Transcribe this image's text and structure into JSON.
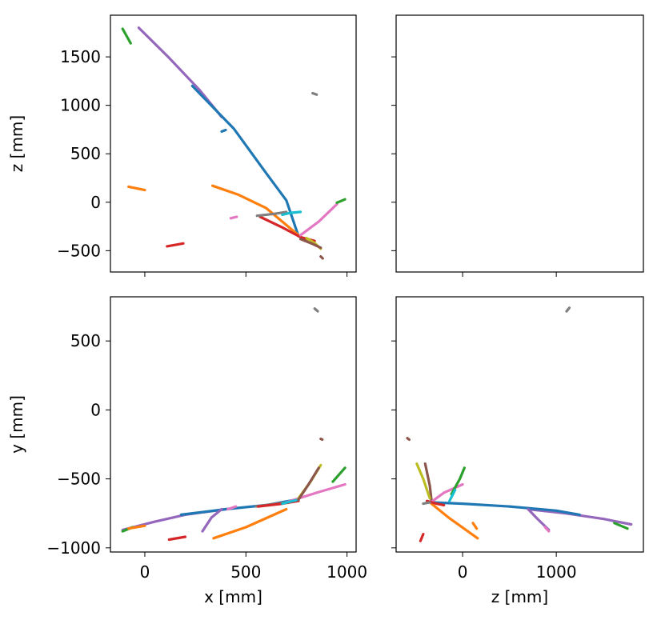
{
  "chart_data": [
    {
      "panel": "top-left",
      "type": "line",
      "xlabel": "",
      "ylabel": "z [mm]",
      "xlim": [
        -170,
        1045
      ],
      "ylim": [
        -720,
        1930
      ],
      "xticks": [
        0,
        500,
        1000
      ],
      "xtick_labels": [
        "",
        "",
        ""
      ],
      "yticks": [
        -500,
        0,
        500,
        1000,
        1500
      ],
      "ytick_labels": [
        "−500",
        "0",
        "500",
        "1000",
        "1500"
      ],
      "series": [
        {
          "color": "#9467bd",
          "x": [
            -30,
            120,
            270,
            380
          ],
          "y": [
            1800,
            1490,
            1160,
            880
          ]
        },
        {
          "color": "#1f77b4",
          "x": [
            235,
            440,
            600,
            700,
            760
          ],
          "y": [
            1200,
            760,
            300,
            20,
            -350
          ]
        },
        {
          "color": "#ff7f0e",
          "x": [
            335,
            460,
            600,
            760
          ],
          "y": [
            170,
            80,
            -60,
            -340
          ]
        },
        {
          "color": "#d62728",
          "x": [
            570,
            680,
            770,
            840
          ],
          "y": [
            -150,
            -260,
            -360,
            -400
          ]
        },
        {
          "color": "#7f7f7f",
          "x": [
            555,
            640,
            700
          ],
          "y": [
            -140,
            -120,
            -100
          ]
        },
        {
          "color": "#17becf",
          "x": [
            680,
            720,
            770
          ],
          "y": [
            -130,
            -110,
            -100
          ]
        },
        {
          "color": "#e377c2",
          "x": [
            770,
            860,
            950
          ],
          "y": [
            -340,
            -200,
            -20
          ]
        },
        {
          "color": "#2ca02c",
          "x": [
            950,
            990
          ],
          "y": [
            -5,
            30
          ]
        },
        {
          "color": "#bcbd22",
          "x": [
            800,
            840,
            870
          ],
          "y": [
            -370,
            -420,
            -480
          ]
        },
        {
          "color": "#8c564b",
          "x": [
            770,
            830,
            870
          ],
          "y": [
            -380,
            -430,
            -470
          ]
        },
        {
          "color": "#2ca02c",
          "x": [
            -110,
            -70
          ],
          "y": [
            1790,
            1640
          ]
        },
        {
          "color": "#ff7f0e",
          "x": [
            -80,
            0
          ],
          "y": [
            160,
            125
          ]
        },
        {
          "color": "#d62728",
          "x": [
            110,
            190
          ],
          "y": [
            -455,
            -425
          ]
        },
        {
          "color": "#e377c2",
          "x": [
            425,
            455
          ],
          "y": [
            -165,
            -150
          ]
        },
        {
          "color": "#7f7f7f",
          "x": [
            830,
            850
          ],
          "y": [
            1125,
            1110
          ]
        },
        {
          "color": "#1f77b4",
          "x": [
            380,
            400
          ],
          "y": [
            730,
            745
          ]
        },
        {
          "color": "#8c564b",
          "x": [
            870,
            880
          ],
          "y": [
            -560,
            -580
          ]
        }
      ]
    },
    {
      "panel": "top-right",
      "type": "line",
      "xlabel": "",
      "ylabel": "",
      "xlim": [
        -710,
        1930
      ],
      "ylim": [
        -720,
        1930
      ],
      "xticks": [
        0,
        1000
      ],
      "xtick_labels": [
        "",
        ""
      ],
      "yticks": [
        -500,
        0,
        500,
        1000,
        1500
      ],
      "ytick_labels": [
        "",
        "",
        "",
        "",
        ""
      ],
      "series": []
    },
    {
      "panel": "bottom-left",
      "type": "line",
      "xlabel": "x [mm]",
      "ylabel": "y [mm]",
      "xlim": [
        -170,
        1045
      ],
      "ylim": [
        -1030,
        820
      ],
      "xticks": [
        0,
        500,
        1000
      ],
      "xtick_labels": [
        "0",
        "500",
        "1000"
      ],
      "yticks": [
        -1000,
        -500,
        0,
        500
      ],
      "ytick_labels": [
        "−1000",
        "−500",
        "0",
        "500"
      ],
      "series": [
        {
          "color": "#9467bd",
          "x": [
            -110,
            50,
            200,
            400
          ],
          "y": [
            -870,
            -810,
            -760,
            -720
          ]
        },
        {
          "color": "#1f77b4",
          "x": [
            180,
            400,
            600,
            750
          ],
          "y": [
            -760,
            -720,
            -690,
            -650
          ]
        },
        {
          "color": "#7f7f7f",
          "x": [
            550,
            650,
            760
          ],
          "y": [
            -700,
            -680,
            -660
          ]
        },
        {
          "color": "#ff7f0e",
          "x": [
            340,
            500,
            700
          ],
          "y": [
            -930,
            -850,
            -720
          ]
        },
        {
          "color": "#e377c2",
          "x": [
            700,
            850,
            990
          ],
          "y": [
            -670,
            -600,
            -540
          ]
        },
        {
          "color": "#d62728",
          "x": [
            560,
            680,
            760
          ],
          "y": [
            -700,
            -680,
            -660
          ]
        },
        {
          "color": "#17becf",
          "x": [
            680,
            760
          ],
          "y": [
            -680,
            -650
          ]
        },
        {
          "color": "#bcbd22",
          "x": [
            760,
            820,
            870
          ],
          "y": [
            -640,
            -520,
            -400
          ]
        },
        {
          "color": "#8c564b",
          "x": [
            760,
            810,
            860
          ],
          "y": [
            -650,
            -540,
            -420
          ]
        },
        {
          "color": "#2ca02c",
          "x": [
            930,
            990
          ],
          "y": [
            -520,
            -420
          ]
        },
        {
          "color": "#9467bd",
          "x": [
            285,
            330,
            380
          ],
          "y": [
            -880,
            -780,
            -720
          ]
        },
        {
          "color": "#d62728",
          "x": [
            120,
            200
          ],
          "y": [
            -940,
            -920
          ]
        },
        {
          "color": "#2ca02c",
          "x": [
            -110,
            -60
          ],
          "y": [
            -880,
            -850
          ]
        },
        {
          "color": "#ff7f0e",
          "x": [
            -80,
            0
          ],
          "y": [
            -860,
            -840
          ]
        },
        {
          "color": "#e377c2",
          "x": [
            410,
            450
          ],
          "y": [
            -720,
            -700
          ]
        },
        {
          "color": "#7f7f7f",
          "x": [
            840,
            855
          ],
          "y": [
            735,
            715
          ]
        },
        {
          "color": "#8c564b",
          "x": [
            870,
            878
          ],
          "y": [
            -210,
            -215
          ]
        }
      ]
    },
    {
      "panel": "bottom-right",
      "type": "line",
      "xlabel": "z [mm]",
      "ylabel": "",
      "xlim": [
        -710,
        1930
      ],
      "ylim": [
        -1030,
        820
      ],
      "xticks": [
        0,
        1000
      ],
      "xtick_labels": [
        "0",
        "1000"
      ],
      "yticks": [
        -1000,
        -500,
        0,
        500
      ],
      "ytick_labels": [
        "",
        "",
        "",
        ""
      ],
      "series": [
        {
          "color": "#9467bd",
          "x": [
            700,
            1100,
            1500,
            1800
          ],
          "y": [
            -720,
            -750,
            -790,
            -830
          ]
        },
        {
          "color": "#1f77b4",
          "x": [
            -350,
            0,
            500,
            1000,
            1250
          ],
          "y": [
            -670,
            -680,
            -700,
            -730,
            -760
          ]
        },
        {
          "color": "#ff7f0e",
          "x": [
            -350,
            -150,
            160
          ],
          "y": [
            -670,
            -780,
            -930
          ]
        },
        {
          "color": "#8c564b",
          "x": [
            -400,
            -350,
            -330
          ],
          "y": [
            -390,
            -550,
            -670
          ]
        },
        {
          "color": "#bcbd22",
          "x": [
            -490,
            -420,
            -350
          ],
          "y": [
            -390,
            -500,
            -640
          ]
        },
        {
          "color": "#e377c2",
          "x": [
            -340,
            -200,
            0
          ],
          "y": [
            -670,
            -600,
            -540
          ]
        },
        {
          "color": "#2ca02c",
          "x": [
            -120,
            -30,
            20
          ],
          "y": [
            -610,
            -500,
            -420
          ]
        },
        {
          "color": "#d62728",
          "x": [
            -380,
            -280,
            -200
          ],
          "y": [
            -660,
            -680,
            -690
          ]
        },
        {
          "color": "#17becf",
          "x": [
            -140,
            -110,
            -80
          ],
          "y": [
            -660,
            -620,
            -580
          ]
        },
        {
          "color": "#7f7f7f",
          "x": [
            -420,
            -350
          ],
          "y": [
            -680,
            -670
          ]
        },
        {
          "color": "#9467bd",
          "x": [
            700,
            800,
            920
          ],
          "y": [
            -720,
            -790,
            -870
          ]
        },
        {
          "color": "#ff7f0e",
          "x": [
            110,
            150
          ],
          "y": [
            -820,
            -860
          ]
        },
        {
          "color": "#d62728",
          "x": [
            -450,
            -420
          ],
          "y": [
            -950,
            -900
          ]
        },
        {
          "color": "#2ca02c",
          "x": [
            1620,
            1760
          ],
          "y": [
            -820,
            -860
          ]
        },
        {
          "color": "#e377c2",
          "x": [
            880,
            920
          ],
          "y": [
            -850,
            -880
          ]
        },
        {
          "color": "#7f7f7f",
          "x": [
            1110,
            1140
          ],
          "y": [
            715,
            740
          ]
        },
        {
          "color": "#8c564b",
          "x": [
            -590,
            -570
          ],
          "y": [
            -205,
            -215
          ]
        }
      ]
    }
  ]
}
